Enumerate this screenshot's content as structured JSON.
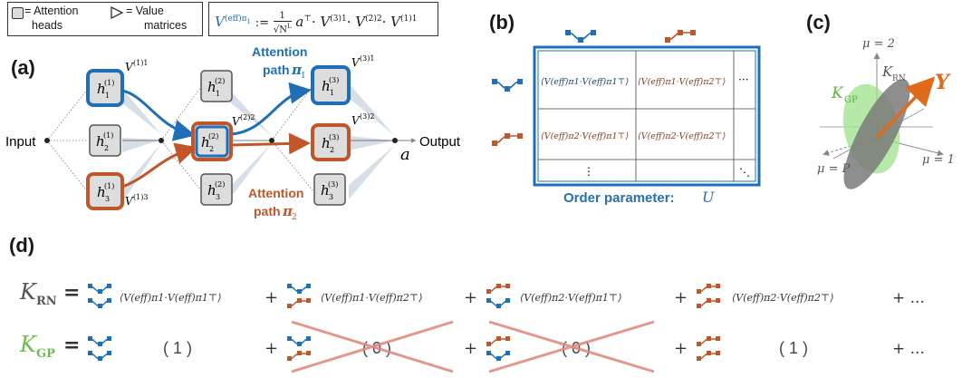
{
  "legend": {
    "attention_label": "= Attention",
    "attention_label2": "heads",
    "value_label": "= Value",
    "value_label2": "matrices"
  },
  "formula": {
    "lhs": "V",
    "lhs_sup": "(eff)π",
    "lhs_sub": "1",
    "assign": ":=",
    "frac_num": "1",
    "frac_den": "√N",
    "frac_den_sup": "L",
    "a": "a",
    "a_sup": "⊤",
    "dot": "·",
    "v3": "V",
    "v3_sup": "(3)1",
    "v2": "V",
    "v2_sup": "(2)2",
    "v1": "V",
    "v1_sup": "(1)1"
  },
  "panels": {
    "a": "(a)",
    "b": "(b)",
    "c": "(c)",
    "d": "(d)"
  },
  "panel_a": {
    "input": "Input",
    "output": "Output",
    "a_out": "a",
    "heads": {
      "h11": "h",
      "h11_sup": "(1)",
      "h11_sub": "1",
      "h21": "h",
      "h21_sup": "(1)",
      "h21_sub": "2",
      "h31": "h",
      "h31_sup": "(1)",
      "h31_sub": "3",
      "h12": "h",
      "h12_sup": "(2)",
      "h12_sub": "1",
      "h22": "h",
      "h22_sup": "(2)",
      "h22_sub": "2",
      "h32": "h",
      "h32_sup": "(2)",
      "h32_sub": "3",
      "h13": "h",
      "h13_sup": "(3)",
      "h13_sub": "1",
      "h23": "h",
      "h23_sup": "(3)",
      "h23_sub": "2",
      "h33": "h",
      "h33_sup": "(3)",
      "h33_sub": "3"
    },
    "v_labels": {
      "v11": "V",
      "v11_sup": "(1)1",
      "v13": "V",
      "v13_sup": "(1)3",
      "v22": "V",
      "v22_sup": "(2)2",
      "v31": "V",
      "v31_sup": "(3)1",
      "v32": "V",
      "v32_sup": "(3)2"
    },
    "path1_title": "Attention",
    "path1_label": "path",
    "path1_sym": "π",
    "path1_sub": "1",
    "path2_title": "Attention",
    "path2_label": "path",
    "path2_sym": "π",
    "path2_sub": "2"
  },
  "panel_b": {
    "cell11": "⟨V(eff)π1·V(eff)π1⊤⟩",
    "cell12": "⟨V(eff)π1·V(eff)π2⊤⟩",
    "cell21": "⟨V(eff)π2·V(eff)π1⊤⟩",
    "cell22": "⟨V(eff)π2·V(eff)π2⊤⟩",
    "hdots": "···",
    "vdots": "⋮",
    "ddots": "⋱",
    "caption": "Order parameter:",
    "caption_sym": "U"
  },
  "panel_c": {
    "mu2": "μ = 2",
    "mu1": "μ = 1",
    "muP": "μ = P",
    "krn": "K",
    "krn_sub": "RN",
    "kgp": "K",
    "kgp_sub": "GP",
    "y": "Y"
  },
  "panel_d": {
    "krn": "K",
    "krn_sub": "RN",
    "kgp": "K",
    "kgp_sub": "GP",
    "eq": "=",
    "plus": "+",
    "ellipsis": "+ ...",
    "t1": "⟨V(eff)π1·V(eff)π1⊤⟩",
    "t2": "⟨V(eff)π1·V(eff)π2⊤⟩",
    "t3": "⟨V(eff)π2·V(eff)π1⊤⟩",
    "t4": "⟨V(eff)π2·V(eff)π2⊤⟩",
    "g1": "( 1 )",
    "g2": "( 0 )",
    "g3": "( 0 )",
    "g4": "( 1 )"
  },
  "colors": {
    "blue": "#1e6fb8",
    "orange": "#c0562a",
    "green": "#6cc04a",
    "grey": "#8a8a8a",
    "cross": "#e08c80",
    "caption_blue": "#2a6fae"
  }
}
